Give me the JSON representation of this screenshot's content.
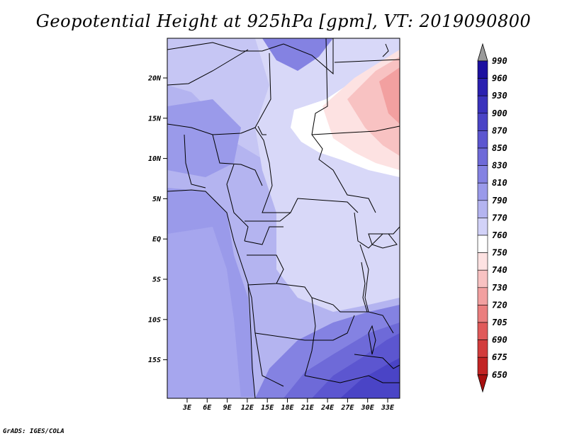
{
  "title": "Geopotential Height at 925hPa [gpm], VT: 2019090800",
  "credit": "GrADS: IGES/COLA",
  "map": {
    "lat_ticks": [
      "20N",
      "15N",
      "10N",
      "5N",
      "EQ",
      "5S",
      "10S",
      "15S"
    ],
    "lon_ticks": [
      "3E",
      "6E",
      "9E",
      "12E",
      "15E",
      "18E",
      "21E",
      "24E",
      "27E",
      "30E",
      "33E"
    ]
  },
  "colorbar": {
    "labels": [
      "990",
      "960",
      "930",
      "900",
      "870",
      "850",
      "830",
      "810",
      "790",
      "770",
      "760",
      "750",
      "740",
      "730",
      "720",
      "705",
      "690",
      "675",
      "650"
    ],
    "colors": [
      "#1c10a0",
      "#2a20b0",
      "#3a32bc",
      "#4a44c6",
      "#5c56d0",
      "#6e6ad8",
      "#8482e2",
      "#9a9aea",
      "#b4b4f0",
      "#d2d2f8",
      "#ffffff",
      "#fde2e2",
      "#f8c2c2",
      "#f2a0a0",
      "#ea7e7e",
      "#e05a5a",
      "#d23c3c",
      "#c22424",
      "#b01414"
    ],
    "top_arrow_color": "#9a9a9a",
    "bottom_arrow_color": "#a81010"
  }
}
